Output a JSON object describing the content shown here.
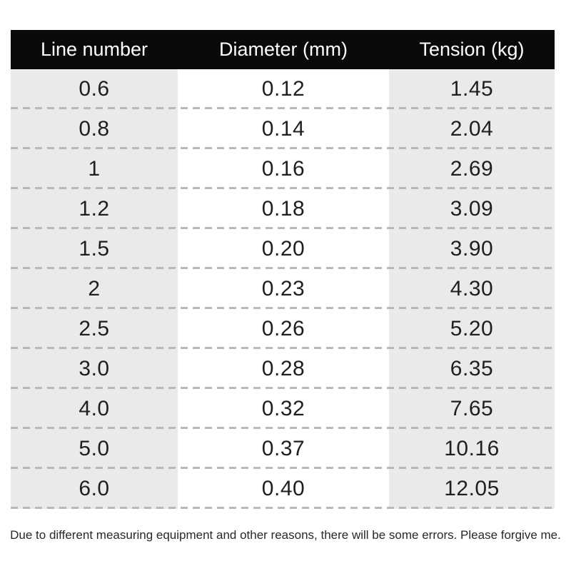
{
  "colors": {
    "header_bg": "#0a0a0a",
    "header_text": "#ffffff",
    "stripe_bg": "#eaeaea",
    "row_alt_bg": "#ffffff",
    "dash": "#b8b8b8",
    "body_text": "#1f1f1f",
    "note_text": "#282828",
    "page_bg": "#ffffff"
  },
  "table": {
    "headers": [
      "Line number",
      "Diameter (mm)",
      "Tension (kg)"
    ],
    "rows": [
      [
        "0.6",
        "0.12",
        "1.45"
      ],
      [
        "0.8",
        "0.14",
        "2.04"
      ],
      [
        "1",
        "0.16",
        "2.69"
      ],
      [
        "1.2",
        "0.18",
        "3.09"
      ],
      [
        "1.5",
        "0.20",
        "3.90"
      ],
      [
        "2",
        "0.23",
        "4.30"
      ],
      [
        "2.5",
        "0.26",
        "5.20"
      ],
      [
        "3.0",
        "0.28",
        "6.35"
      ],
      [
        "4.0",
        "0.32",
        "7.65"
      ],
      [
        "5.0",
        "0.37",
        "10.16"
      ],
      [
        "6.0",
        "0.40",
        "12.05"
      ]
    ]
  },
  "footer_note": "Due to different measuring equipment and other reasons, there will be some errors. Please forgive me."
}
